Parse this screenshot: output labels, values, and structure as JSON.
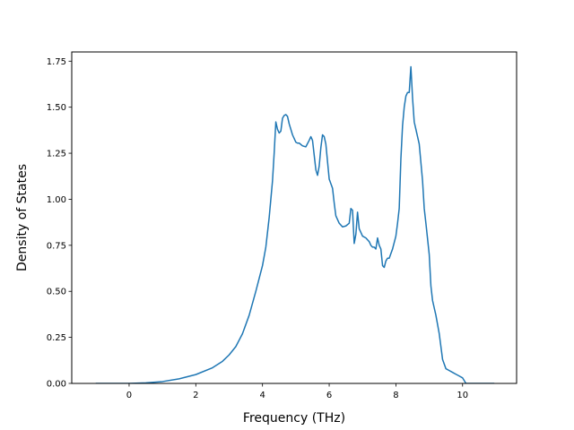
{
  "chart_data": {
    "type": "line",
    "xlabel": "Frequency (THz)",
    "ylabel": "Density of States",
    "xlim": [
      -1.72,
      11.62
    ],
    "ylim": [
      0,
      1.8
    ],
    "xticks": [
      0,
      2,
      4,
      6,
      8,
      10
    ],
    "yticks": [
      0.0,
      0.25,
      0.5,
      0.75,
      1.0,
      1.25,
      1.5,
      1.75
    ],
    "xtick_labels": [
      "0",
      "2",
      "4",
      "6",
      "8",
      "10"
    ],
    "ytick_labels": [
      "0.00",
      "0.25",
      "0.50",
      "0.75",
      "1.00",
      "1.25",
      "1.50",
      "1.75"
    ],
    "grid": false,
    "series": [
      {
        "color": "#1f77b4",
        "x": [
          -1.0,
          -0.5,
          0.0,
          0.5,
          1.0,
          1.5,
          2.0,
          2.5,
          2.8,
          3.0,
          3.2,
          3.4,
          3.6,
          3.8,
          3.9,
          4.0,
          4.1,
          4.2,
          4.3,
          4.35,
          4.4,
          4.45,
          4.5,
          4.55,
          4.6,
          4.65,
          4.7,
          4.75,
          4.8,
          4.9,
          5.0,
          5.05,
          5.1,
          5.2,
          5.3,
          5.4,
          5.45,
          5.5,
          5.55,
          5.6,
          5.65,
          5.7,
          5.75,
          5.8,
          5.85,
          5.9,
          6.0,
          6.1,
          6.15,
          6.2,
          6.3,
          6.4,
          6.5,
          6.6,
          6.65,
          6.7,
          6.75,
          6.8,
          6.85,
          6.9,
          7.0,
          7.1,
          7.2,
          7.25,
          7.3,
          7.35,
          7.4,
          7.45,
          7.5,
          7.55,
          7.6,
          7.65,
          7.7,
          7.75,
          7.8,
          7.9,
          8.0,
          8.05,
          8.1,
          8.15,
          8.2,
          8.25,
          8.3,
          8.35,
          8.4,
          8.45,
          8.5,
          8.55,
          8.6,
          8.65,
          8.7,
          8.8,
          8.85,
          8.9,
          9.0,
          9.05,
          9.1,
          9.2,
          9.3,
          9.35,
          9.4,
          9.5,
          9.6,
          9.7,
          9.8,
          9.9,
          10.0,
          10.05,
          10.1,
          10.5,
          10.95
        ],
        "y": [
          0.0,
          0.0,
          0.0,
          0.003,
          0.01,
          0.025,
          0.048,
          0.085,
          0.12,
          0.155,
          0.2,
          0.27,
          0.37,
          0.5,
          0.57,
          0.64,
          0.74,
          0.9,
          1.1,
          1.25,
          1.42,
          1.38,
          1.36,
          1.37,
          1.44,
          1.455,
          1.46,
          1.45,
          1.41,
          1.35,
          1.31,
          1.305,
          1.305,
          1.29,
          1.285,
          1.32,
          1.34,
          1.32,
          1.24,
          1.16,
          1.13,
          1.18,
          1.28,
          1.35,
          1.34,
          1.3,
          1.11,
          1.06,
          0.98,
          0.91,
          0.87,
          0.85,
          0.855,
          0.87,
          0.95,
          0.94,
          0.76,
          0.81,
          0.93,
          0.84,
          0.8,
          0.79,
          0.77,
          0.75,
          0.74,
          0.74,
          0.73,
          0.79,
          0.75,
          0.73,
          0.64,
          0.63,
          0.665,
          0.68,
          0.68,
          0.73,
          0.8,
          0.87,
          0.95,
          1.22,
          1.4,
          1.5,
          1.56,
          1.58,
          1.58,
          1.72,
          1.55,
          1.42,
          1.38,
          1.34,
          1.3,
          1.1,
          0.95,
          0.87,
          0.7,
          0.53,
          0.45,
          0.37,
          0.27,
          0.2,
          0.13,
          0.08,
          0.07,
          0.06,
          0.05,
          0.04,
          0.03,
          0.015,
          0.0,
          0.0,
          0.0
        ]
      }
    ]
  }
}
